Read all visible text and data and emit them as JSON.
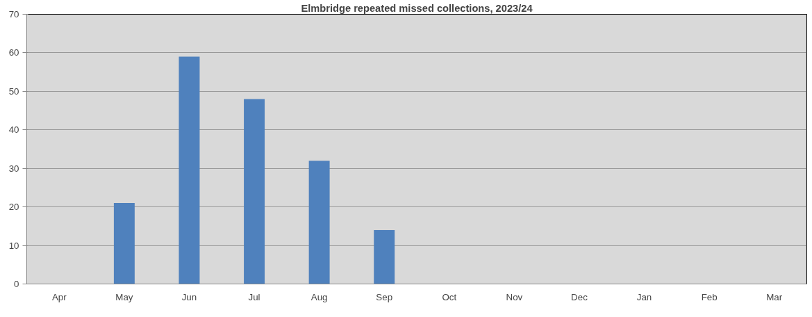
{
  "chart_data": {
    "type": "bar",
    "title": "Elmbridge repeated missed collections, 2023/24",
    "categories": [
      "Apr",
      "May",
      "Jun",
      "Jul",
      "Aug",
      "Sep",
      "Oct",
      "Nov",
      "Dec",
      "Jan",
      "Feb",
      "Mar"
    ],
    "values": [
      null,
      21,
      59,
      48,
      32,
      14,
      null,
      null,
      null,
      null,
      null,
      null
    ],
    "color": "#4f81bd",
    "ylim": [
      0,
      70
    ],
    "yticks": [
      0,
      10,
      20,
      30,
      40,
      50,
      60,
      70
    ],
    "grid": "y"
  }
}
